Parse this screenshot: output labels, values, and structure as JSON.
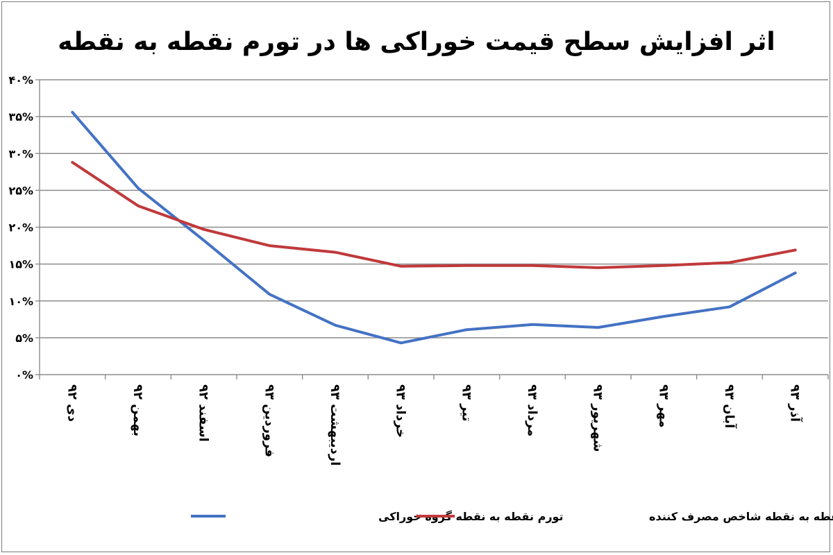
{
  "chart_data": {
    "type": "line",
    "title": "اثر افزایش سطح قیمت خوراکی ها در تورم نقطه به نقطه",
    "categories": [
      "دی ۹۲",
      "بهمن ۹۲",
      "اسفند ۹۲",
      "فروردین ۹۳",
      "اردیبهشت ۹۳",
      "خرداد ۹۳",
      "تیر ۹۳",
      "مرداد ۹۳",
      "شهریور ۹۳",
      "مهر ۹۳",
      "آبان ۹۳",
      "آذر ۹۳"
    ],
    "y_ticks": [
      {
        "value": 0,
        "label": "۰%"
      },
      {
        "value": 5,
        "label": "۵%"
      },
      {
        "value": 10,
        "label": "۱۰%"
      },
      {
        "value": 15,
        "label": "۱۵%"
      },
      {
        "value": 20,
        "label": "۲۰%"
      },
      {
        "value": 25,
        "label": "۲۵%"
      },
      {
        "value": 30,
        "label": "۳۰%"
      },
      {
        "value": 35,
        "label": "۳۵%"
      },
      {
        "value": 40,
        "label": "۴۰%"
      }
    ],
    "ylim": [
      0,
      40
    ],
    "grid": true,
    "legend_position": "bottom",
    "series": [
      {
        "name": "تورم نقطه به نقطه گروه خوراکی",
        "color": "#4472c4",
        "values": [
          35.6,
          25.3,
          18.2,
          10.9,
          6.7,
          4.3,
          6.1,
          6.8,
          6.4,
          7.9,
          9.2,
          13.8
        ]
      },
      {
        "name": "تورم نقطه به نقطه شاخص مصرف کننده",
        "color": "#c0393b",
        "values": [
          28.8,
          22.9,
          19.7,
          17.5,
          16.6,
          14.7,
          14.8,
          14.8,
          14.5,
          14.8,
          15.2,
          16.9
        ]
      }
    ]
  }
}
